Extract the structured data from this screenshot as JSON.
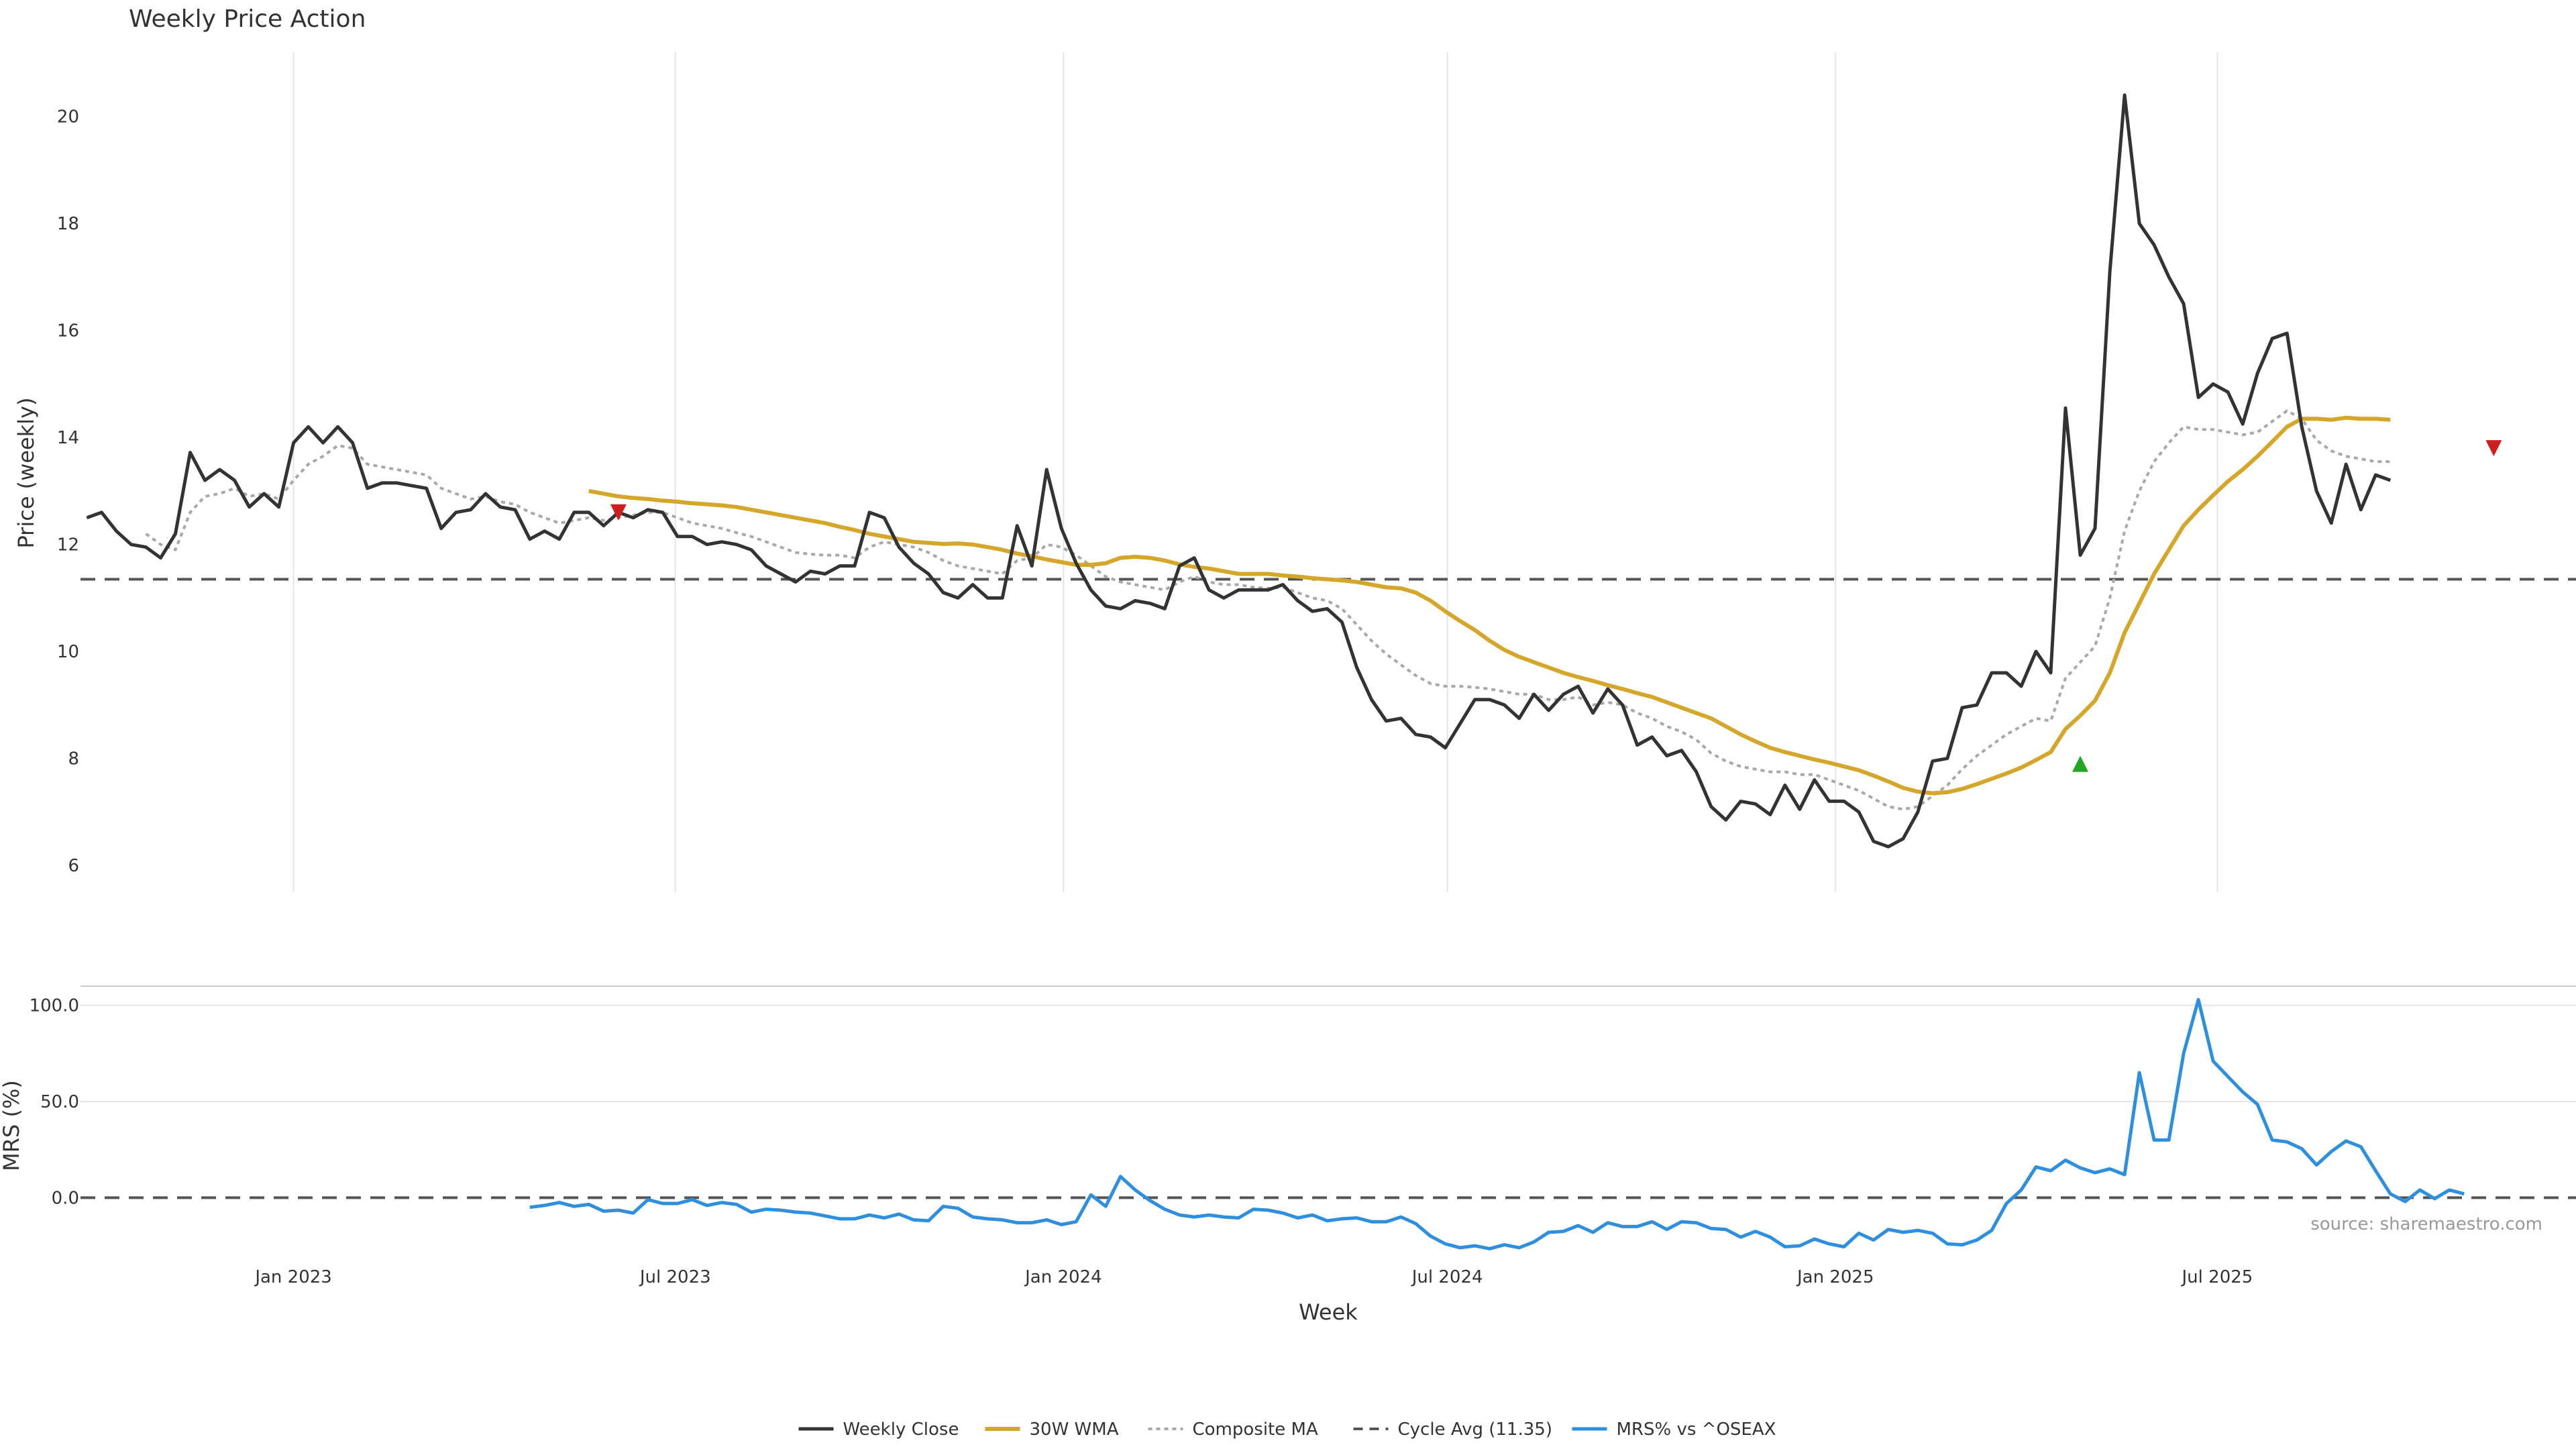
{
  "colors": {
    "close": "#333333",
    "wma": "#D4A62A",
    "composite": "#A8A8A8",
    "cycle": "#555555",
    "mrs": "#2E8FDF",
    "sell": "#CC1F1F",
    "buy": "#22A722",
    "grid": "#E6E6E6"
  },
  "chart_data": {
    "title": "Weekly Price Action",
    "xlabel": "Week",
    "source_note": "source: sharemaestro.com",
    "x_range": [
      "2022-09-22",
      "2025-12-18"
    ],
    "x_ticks": [
      {
        "date": "2023-01-01",
        "label": "Jan 2023"
      },
      {
        "date": "2023-07-01",
        "label": "Jul 2023"
      },
      {
        "date": "2024-01-01",
        "label": "Jan 2024"
      },
      {
        "date": "2024-07-01",
        "label": "Jul 2024"
      },
      {
        "date": "2025-01-01",
        "label": "Jan 2025"
      },
      {
        "date": "2025-07-01",
        "label": "Jul 2025"
      }
    ],
    "price_panel": {
      "type": "line",
      "ylabel": "Price (weekly)",
      "ylim": [
        5.5,
        21.2
      ],
      "yticks": [
        6,
        8,
        10,
        12,
        14,
        16,
        18,
        20
      ],
      "cycle_avg": 11.35,
      "start": "2022-09-25",
      "step_days": 7,
      "series": [
        {
          "name": "Weekly Close",
          "values": [
            12.5,
            12.6,
            12.25,
            12.0,
            11.95,
            11.75,
            12.2,
            13.72,
            13.2,
            13.4,
            13.2,
            12.7,
            12.95,
            12.7,
            13.9,
            14.2,
            13.9,
            14.2,
            13.9,
            13.05,
            13.15,
            13.15,
            13.1,
            13.05,
            12.3,
            12.6,
            12.65,
            12.95,
            12.7,
            12.65,
            12.1,
            12.25,
            12.1,
            12.6,
            12.6,
            12.35,
            12.6,
            12.5,
            12.65,
            12.6,
            12.15,
            12.15,
            12.0,
            12.05,
            12.0,
            11.9,
            11.6,
            11.45,
            11.3,
            11.5,
            11.45,
            11.6,
            11.6,
            12.6,
            12.5,
            11.95,
            11.65,
            11.45,
            11.1,
            11.0,
            11.25,
            11.0,
            11.0,
            12.35,
            11.6,
            13.4,
            12.3,
            11.65,
            11.15,
            10.85,
            10.8,
            10.95,
            10.9,
            10.8,
            11.6,
            11.75,
            11.15,
            11.0,
            11.15,
            11.15,
            11.15,
            11.25,
            10.95,
            10.75,
            10.8,
            10.55,
            9.7,
            9.1,
            8.7,
            8.75,
            8.45,
            8.4,
            8.2,
            8.65,
            9.1,
            9.1,
            9.0,
            8.75,
            9.2,
            8.9,
            9.2,
            9.35,
            8.85,
            9.3,
            9.0,
            8.25,
            8.4,
            8.05,
            8.15,
            7.75,
            7.1,
            6.85,
            7.2,
            7.15,
            6.95,
            7.5,
            7.05,
            7.6,
            7.2,
            7.2,
            7.0,
            6.45,
            6.35,
            6.5,
            7.0,
            7.95,
            8.0,
            8.95,
            9.0,
            9.6,
            9.6,
            9.35,
            10.0,
            9.6,
            14.55,
            11.8,
            12.3,
            17.1,
            20.4,
            18.0,
            17.6,
            17.0,
            16.5,
            14.75,
            15.0,
            14.85,
            14.25,
            15.2,
            15.85,
            15.95,
            14.2,
            13.0,
            12.4,
            13.5,
            12.65,
            13.3,
            13.2
          ]
        },
        {
          "name": "30W WMA",
          "start": "2023-05-21",
          "values": [
            13.0,
            12.95,
            12.9,
            12.87,
            12.85,
            12.82,
            12.8,
            12.77,
            12.75,
            12.73,
            12.7,
            12.65,
            12.6,
            12.55,
            12.5,
            12.45,
            12.4,
            12.33,
            12.27,
            12.2,
            12.15,
            12.1,
            12.05,
            12.03,
            12.01,
            12.02,
            12.0,
            11.95,
            11.9,
            11.83,
            11.78,
            11.72,
            11.67,
            11.62,
            11.62,
            11.65,
            11.75,
            11.77,
            11.75,
            11.7,
            11.63,
            11.58,
            11.55,
            11.5,
            11.45,
            11.45,
            11.45,
            11.42,
            11.4,
            11.37,
            11.35,
            11.33,
            11.3,
            11.25,
            11.2,
            11.18,
            11.1,
            10.95,
            10.75,
            10.57,
            10.4,
            10.2,
            10.03,
            9.9,
            9.8,
            9.7,
            9.6,
            9.52,
            9.45,
            9.37,
            9.3,
            9.22,
            9.15,
            9.05,
            8.95,
            8.85,
            8.75,
            8.6,
            8.45,
            8.32,
            8.2,
            8.12,
            8.05,
            7.98,
            7.92,
            7.85,
            7.78,
            7.68,
            7.57,
            7.45,
            7.38,
            7.35,
            7.37,
            7.43,
            7.52,
            7.62,
            7.72,
            7.83,
            7.97,
            8.12,
            8.55,
            8.8,
            9.08,
            9.6,
            10.35,
            10.9,
            11.45,
            11.9,
            12.35,
            12.65,
            12.92,
            13.18,
            13.4,
            13.65,
            13.92,
            14.2,
            14.35,
            14.35,
            14.33,
            14.37,
            14.35,
            14.35,
            14.33
          ]
        },
        {
          "name": "Composite MA",
          "values": [
            null,
            null,
            null,
            null,
            12.2,
            12.0,
            11.9,
            12.6,
            12.9,
            12.95,
            13.05,
            12.9,
            12.95,
            12.85,
            13.2,
            13.5,
            13.65,
            13.85,
            13.8,
            13.5,
            13.45,
            13.4,
            13.35,
            13.3,
            13.05,
            12.95,
            12.85,
            12.9,
            12.8,
            12.75,
            12.6,
            12.5,
            12.4,
            12.45,
            12.5,
            12.45,
            12.5,
            12.55,
            12.6,
            12.6,
            12.5,
            12.4,
            12.35,
            12.3,
            12.22,
            12.15,
            12.05,
            11.95,
            11.85,
            11.82,
            11.8,
            11.8,
            11.75,
            11.95,
            12.05,
            12.0,
            11.95,
            11.85,
            11.7,
            11.6,
            11.55,
            11.5,
            11.45,
            11.7,
            11.75,
            12.0,
            11.95,
            11.8,
            11.6,
            11.4,
            11.3,
            11.25,
            11.2,
            11.15,
            11.3,
            11.4,
            11.3,
            11.25,
            11.25,
            11.2,
            11.18,
            11.2,
            11.1,
            11.0,
            10.95,
            10.8,
            10.5,
            10.2,
            9.95,
            9.75,
            9.55,
            9.4,
            9.35,
            9.35,
            9.33,
            9.3,
            9.25,
            9.2,
            9.2,
            9.1,
            9.1,
            9.15,
            9.0,
            9.05,
            9.0,
            8.85,
            8.75,
            8.6,
            8.5,
            8.35,
            8.1,
            7.95,
            7.85,
            7.8,
            7.75,
            7.75,
            7.7,
            7.7,
            7.6,
            7.5,
            7.4,
            7.25,
            7.1,
            7.05,
            7.1,
            7.3,
            7.5,
            7.8,
            8.05,
            8.25,
            8.45,
            8.6,
            8.75,
            8.7,
            9.5,
            9.8,
            10.1,
            11.0,
            12.25,
            13.0,
            13.55,
            13.9,
            14.2,
            14.15,
            14.15,
            14.1,
            14.05,
            14.1,
            14.3,
            14.5,
            14.35,
            13.95,
            13.75,
            13.65,
            13.6,
            13.55,
            13.55
          ]
        }
      ],
      "markers": [
        {
          "type": "sell",
          "date": "2023-06-04",
          "value": 12.6
        },
        {
          "type": "buy",
          "date": "2025-04-27",
          "value": 7.9
        },
        {
          "type": "sell",
          "date": "2025-11-09",
          "value": 13.8
        }
      ]
    },
    "mrs_panel": {
      "type": "line",
      "ylabel": "MRS (%)",
      "ylim": [
        -33,
        110
      ],
      "yticks": [
        0,
        50,
        100
      ],
      "ytick_labels": [
        "0.0",
        "50.0",
        "100.0"
      ],
      "series": [
        {
          "name": "MRS% vs ^OSEAX",
          "start": "2023-04-23",
          "values": [
            -5.0,
            -4.0,
            -2.5,
            -4.5,
            -3.5,
            -7.0,
            -6.5,
            -8.0,
            -1.0,
            -3.0,
            -3.0,
            -1.0,
            -4.0,
            -2.5,
            -3.5,
            -7.5,
            -6.0,
            -6.5,
            -7.5,
            -8.0,
            -9.5,
            -11.0,
            -11.0,
            -9.0,
            -10.5,
            -8.5,
            -11.5,
            -12.0,
            -4.5,
            -5.5,
            -10.0,
            -11.0,
            -11.5,
            -13.0,
            -13.0,
            -11.5,
            -14.0,
            -12.5,
            1.5,
            -4.5,
            11.0,
            4.0,
            -1.5,
            -6.0,
            -9.0,
            -10.0,
            -9.0,
            -10.0,
            -10.5,
            -6.0,
            -6.5,
            -8.0,
            -10.5,
            -9.0,
            -12.0,
            -11.0,
            -10.5,
            -12.5,
            -12.5,
            -10.0,
            -13.5,
            -20.0,
            -24.0,
            -26.0,
            -25.0,
            -26.5,
            -24.5,
            -26.0,
            -23.0,
            -18.0,
            -17.5,
            -14.5,
            -18.0,
            -13.0,
            -15.0,
            -15.0,
            -12.5,
            -16.5,
            -12.5,
            -13.0,
            -16.0,
            -16.5,
            -20.5,
            -17.5,
            -20.5,
            -25.5,
            -25.0,
            -21.5,
            -24.0,
            -25.5,
            -18.5,
            -22.0,
            -16.5,
            -18.0,
            -17.0,
            -18.5,
            -24.0,
            -24.5,
            -22.0,
            -17.0,
            -3.0,
            4.0,
            16.0,
            14.0,
            19.5,
            15.5,
            13.0,
            15.0,
            12.0,
            65.0,
            30.0,
            30.0,
            75.0,
            103.0,
            71.0,
            63.0,
            55.0,
            48.5,
            30.0,
            29.0,
            25.5,
            17.0,
            24.0,
            29.5,
            26.5,
            14.0,
            2.0,
            -2.0,
            4.0,
            -0.5,
            4.0,
            2.0
          ]
        }
      ]
    },
    "legend": {
      "placement": "bottom-center",
      "entries": [
        {
          "label": "Weekly Close",
          "style": "close"
        },
        {
          "label": "30W WMA",
          "style": "wma"
        },
        {
          "label": "Composite MA",
          "style": "composite"
        },
        {
          "label": "Cycle Avg (11.35)",
          "style": "cycle"
        },
        {
          "label": "MRS% vs ^OSEAX",
          "style": "mrs"
        }
      ]
    }
  }
}
